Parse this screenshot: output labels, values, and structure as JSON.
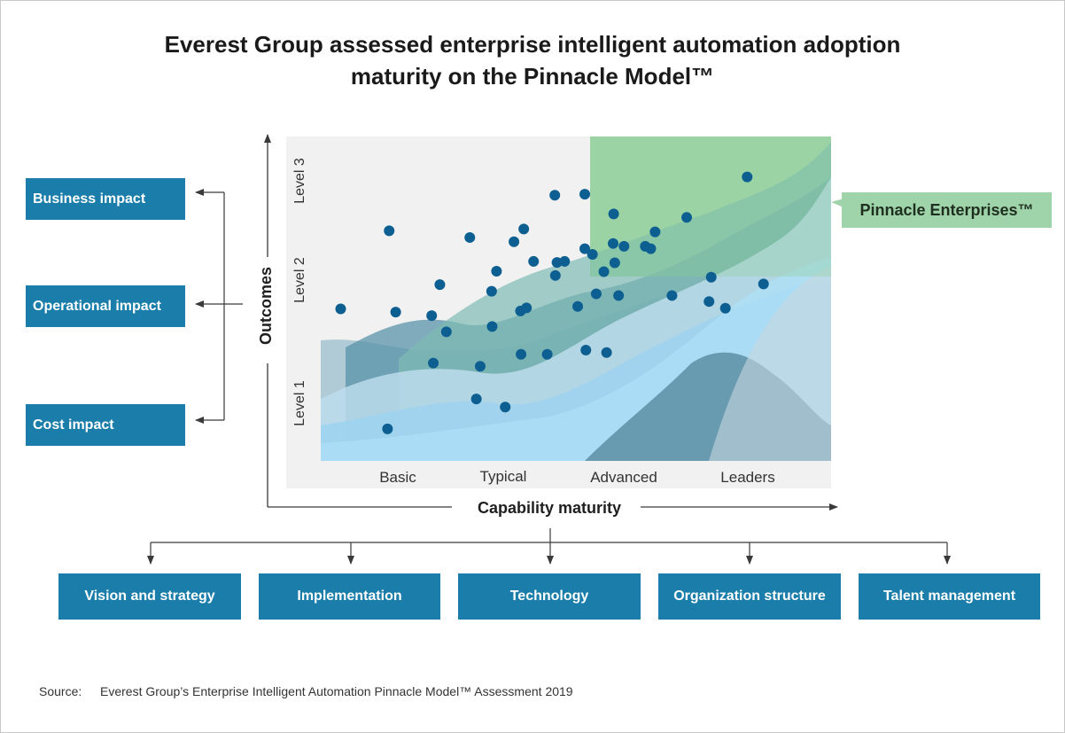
{
  "title": {
    "line1": "Everest Group assessed enterprise intelligent automation adoption",
    "line2": "maturity on the Pinnacle Model™"
  },
  "impacts": [
    "Business impact",
    "Operational impact",
    "Cost impact"
  ],
  "dimensions": [
    "Vision and strategy",
    "Implementation",
    "Technology",
    "Organization structure",
    "Talent management"
  ],
  "pinnacle_label": "Pinnacle Enterprises™",
  "source": {
    "label": "Source:",
    "text": "Everest Group’s Enterprise Intelligent Automation Pinnacle Model™ Assessment 2019"
  },
  "colors": {
    "box": "#1b7eaa",
    "dot": "#0e5f91",
    "pinnacle_zone": "#9fd3a9",
    "panel": "#f1f1f1"
  },
  "chart_data": {
    "type": "scatter",
    "xlabel": "Capability maturity",
    "ylabel": "Outcomes",
    "x_categories": [
      "Basic",
      "Typical",
      "Advanced",
      "Leaders"
    ],
    "y_levels": [
      "Level 1",
      "Level 2",
      "Level 3"
    ],
    "xlim": [
      0,
      1
    ],
    "ylim": [
      0,
      1
    ],
    "points": [
      {
        "x": 0.1,
        "y": 0.51
      },
      {
        "x": 0.189,
        "y": 0.732
      },
      {
        "x": 0.201,
        "y": 0.501
      },
      {
        "x": 0.186,
        "y": 0.169
      },
      {
        "x": 0.267,
        "y": 0.491
      },
      {
        "x": 0.294,
        "y": 0.445
      },
      {
        "x": 0.282,
        "y": 0.579
      },
      {
        "x": 0.27,
        "y": 0.356
      },
      {
        "x": 0.337,
        "y": 0.713
      },
      {
        "x": 0.349,
        "y": 0.254
      },
      {
        "x": 0.356,
        "y": 0.347
      },
      {
        "x": 0.386,
        "y": 0.617
      },
      {
        "x": 0.377,
        "y": 0.56
      },
      {
        "x": 0.378,
        "y": 0.46
      },
      {
        "x": 0.418,
        "y": 0.701
      },
      {
        "x": 0.402,
        "y": 0.231
      },
      {
        "x": 0.436,
        "y": 0.737
      },
      {
        "x": 0.43,
        "y": 0.504
      },
      {
        "x": 0.441,
        "y": 0.513
      },
      {
        "x": 0.454,
        "y": 0.645
      },
      {
        "x": 0.431,
        "y": 0.381
      },
      {
        "x": 0.479,
        "y": 0.381
      },
      {
        "x": 0.493,
        "y": 0.833
      },
      {
        "x": 0.494,
        "y": 0.605
      },
      {
        "x": 0.497,
        "y": 0.642
      },
      {
        "x": 0.511,
        "y": 0.645
      },
      {
        "x": 0.548,
        "y": 0.836
      },
      {
        "x": 0.548,
        "y": 0.681
      },
      {
        "x": 0.562,
        "y": 0.665
      },
      {
        "x": 0.569,
        "y": 0.553
      },
      {
        "x": 0.55,
        "y": 0.393
      },
      {
        "x": 0.588,
        "y": 0.386
      },
      {
        "x": 0.535,
        "y": 0.517
      },
      {
        "x": 0.583,
        "y": 0.616
      },
      {
        "x": 0.601,
        "y": 0.78
      },
      {
        "x": 0.6,
        "y": 0.696
      },
      {
        "x": 0.62,
        "y": 0.688
      },
      {
        "x": 0.603,
        "y": 0.641
      },
      {
        "x": 0.61,
        "y": 0.548
      },
      {
        "x": 0.659,
        "y": 0.688
      },
      {
        "x": 0.669,
        "y": 0.681
      },
      {
        "x": 0.677,
        "y": 0.729
      },
      {
        "x": 0.735,
        "y": 0.77
      },
      {
        "x": 0.708,
        "y": 0.548
      },
      {
        "x": 0.78,
        "y": 0.6
      },
      {
        "x": 0.776,
        "y": 0.531
      },
      {
        "x": 0.806,
        "y": 0.512
      },
      {
        "x": 0.846,
        "y": 0.885
      },
      {
        "x": 0.876,
        "y": 0.581
      }
    ]
  }
}
